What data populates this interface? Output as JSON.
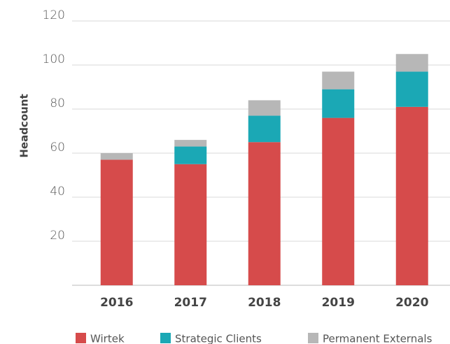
{
  "chart_data": {
    "type": "stacked_bar",
    "y_label": "Headcount",
    "categories": [
      "2016",
      "2017",
      "2018",
      "2019",
      "2020"
    ],
    "series": [
      {
        "name": "Wirtek",
        "color": "#d64b4b",
        "values": [
          57,
          55,
          65,
          76,
          81
        ]
      },
      {
        "name": "Strategic Clients",
        "color": "#1ba8b5",
        "values": [
          0,
          8,
          12,
          13,
          16
        ]
      },
      {
        "name": "Permanent Externals",
        "color": "#b7b7b7",
        "values": [
          3,
          3,
          7,
          8,
          8
        ]
      }
    ],
    "ylim": [
      0,
      120
    ],
    "yticks": [
      20,
      40,
      60,
      80,
      100,
      120
    ],
    "grid": true
  }
}
